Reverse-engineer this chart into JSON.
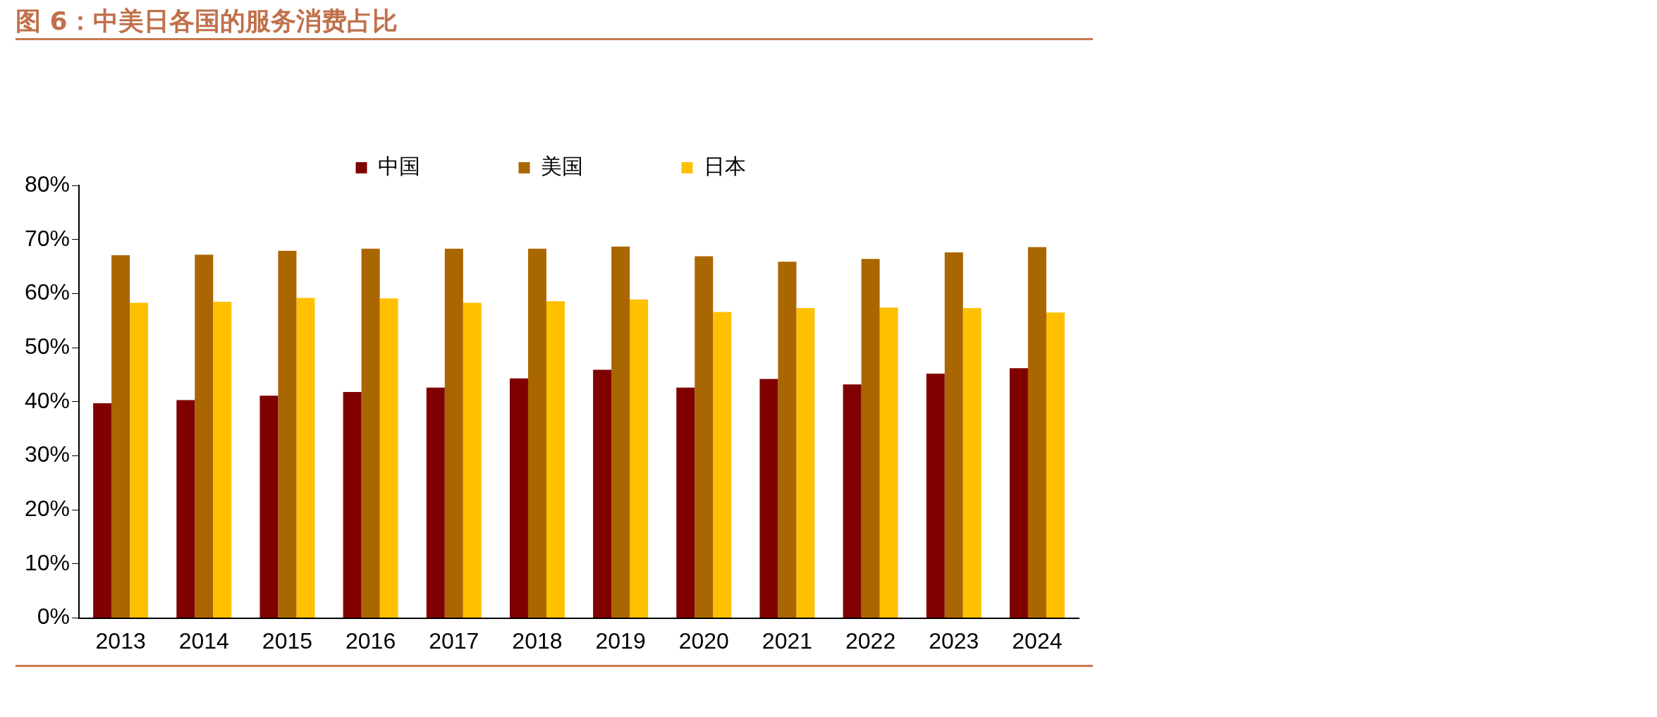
{
  "chart_data": {
    "type": "bar",
    "title": "图 6：中美日各国的服务消费占比",
    "categories": [
      "2013",
      "2014",
      "2015",
      "2016",
      "2017",
      "2018",
      "2019",
      "2020",
      "2021",
      "2022",
      "2023",
      "2024"
    ],
    "series": [
      {
        "name": "中国",
        "color": "#800000",
        "values": [
          39.7,
          40.3,
          41.1,
          41.8,
          42.6,
          44.3,
          45.9,
          42.6,
          44.2,
          43.2,
          45.2,
          46.2
        ]
      },
      {
        "name": "美国",
        "color": "#aa6600",
        "values": [
          67.1,
          67.2,
          67.9,
          68.3,
          68.3,
          68.3,
          68.7,
          66.9,
          65.9,
          66.4,
          67.6,
          68.6
        ]
      },
      {
        "name": "日本",
        "color": "#ffc000",
        "values": [
          58.3,
          58.5,
          59.2,
          59.1,
          58.3,
          58.6,
          58.9,
          56.6,
          57.3,
          57.4,
          57.3,
          56.5
        ]
      }
    ],
    "ylim": [
      0,
      80
    ],
    "yticks": [
      {
        "value": 0,
        "label": "0%"
      },
      {
        "value": 10,
        "label": "10%"
      },
      {
        "value": 20,
        "label": "20%"
      },
      {
        "value": 30,
        "label": "30%"
      },
      {
        "value": 40,
        "label": "40%"
      },
      {
        "value": 50,
        "label": "50%"
      },
      {
        "value": 60,
        "label": "60%"
      },
      {
        "value": 70,
        "label": "70%"
      },
      {
        "value": 80,
        "label": "80%"
      }
    ],
    "grid": false,
    "legend": "top"
  }
}
